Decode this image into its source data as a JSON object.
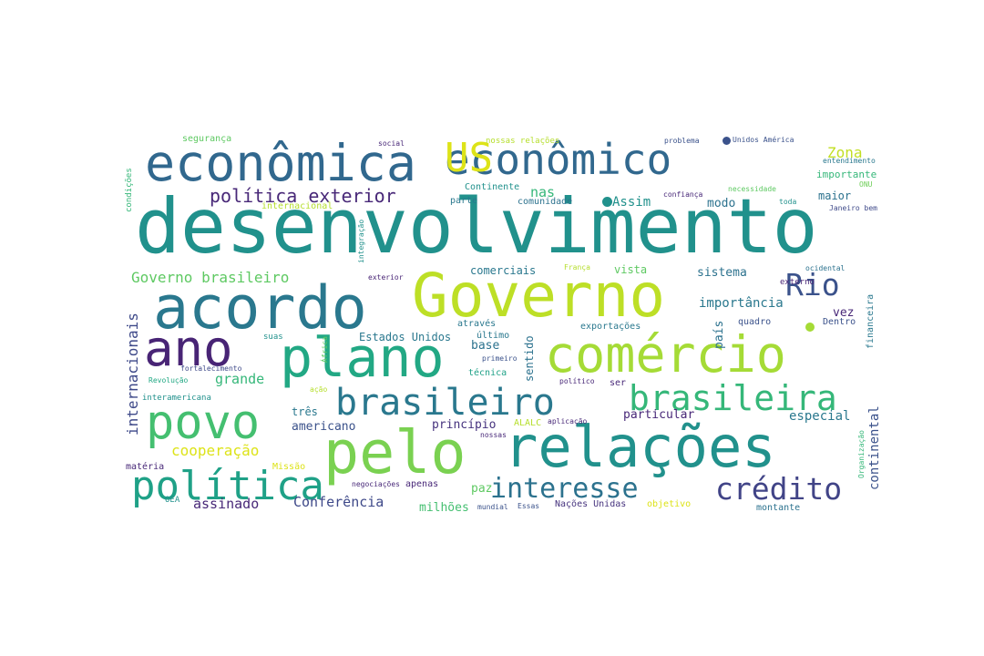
{
  "words": [
    {
      "text": "desenvolvimento",
      "color": "#21918c"
    },
    {
      "text": "econômica",
      "color": "#31688e"
    },
    {
      "text": "econômico",
      "color": "#31688e"
    },
    {
      "text": "US",
      "color": "#dde318"
    },
    {
      "text": "acordo",
      "color": "#2a788e"
    },
    {
      "text": "Governo",
      "color": "#bddf26"
    },
    {
      "text": "Rio",
      "color": "#3b528b"
    },
    {
      "text": "ano",
      "color": "#482475"
    },
    {
      "text": "plano",
      "color": "#22a884"
    },
    {
      "text": "comércio",
      "color": "#a5db36"
    },
    {
      "text": "brasileiro",
      "color": "#2a788e"
    },
    {
      "text": "brasileira",
      "color": "#35b779"
    },
    {
      "text": "povo",
      "color": "#44bf70"
    },
    {
      "text": "pelo",
      "color": "#7ad151"
    },
    {
      "text": "relações",
      "color": "#21918c"
    },
    {
      "text": "política",
      "color": "#1fa187"
    },
    {
      "text": "interesse",
      "color": "#2c728e"
    },
    {
      "text": "crédito",
      "color": "#414487"
    },
    {
      "text": "política exterior",
      "color": "#482878"
    },
    {
      "text": "Governo brasileiro",
      "color": "#5ec962"
    },
    {
      "text": "nas",
      "color": "#35b779"
    },
    {
      "text": "Assim",
      "color": "#21918c"
    },
    {
      "text": "Zona",
      "color": "#c2df23"
    },
    {
      "text": "importante",
      "color": "#35b779"
    },
    {
      "text": "maior",
      "color": "#2c728e"
    },
    {
      "text": "modo",
      "color": "#2c728e"
    },
    {
      "text": "comerciais",
      "color": "#2a788e"
    },
    {
      "text": "vista",
      "color": "#5ec962"
    },
    {
      "text": "sistema",
      "color": "#2c728e"
    },
    {
      "text": "externo",
      "color": "#482475"
    },
    {
      "text": "importância",
      "color": "#2a788e"
    },
    {
      "text": "vez",
      "color": "#482878"
    },
    {
      "text": "internacionais",
      "color": "#3e4989"
    },
    {
      "text": "Estados Unidos",
      "color": "#2a788e"
    },
    {
      "text": "base",
      "color": "#2c728e"
    },
    {
      "text": "sentido",
      "color": "#2c728e"
    },
    {
      "text": "país",
      "color": "#2c728e"
    },
    {
      "text": "quadro",
      "color": "#3b528b"
    },
    {
      "text": "Dentro",
      "color": "#3b528b"
    },
    {
      "text": "financeira",
      "color": "#2a788e"
    },
    {
      "text": "continental",
      "color": "#3b528b"
    },
    {
      "text": "especial",
      "color": "#2a788e"
    },
    {
      "text": "particular",
      "color": "#482878"
    },
    {
      "text": "grande",
      "color": "#35b779"
    },
    {
      "text": "três",
      "color": "#2a788e"
    },
    {
      "text": "americano",
      "color": "#3b528b"
    },
    {
      "text": "princípio",
      "color": "#46337e"
    },
    {
      "text": "cooperação",
      "color": "#dde318"
    },
    {
      "text": "assinado",
      "color": "#482878"
    },
    {
      "text": "Conferência",
      "color": "#3e4989"
    },
    {
      "text": "paz",
      "color": "#5ec962"
    },
    {
      "text": "milhões",
      "color": "#44bf70"
    },
    {
      "text": "segurança",
      "color": "#5ec962"
    },
    {
      "text": "social",
      "color": "#482878"
    },
    {
      "text": "nossas relações",
      "color": "#b5de2b"
    },
    {
      "text": "problema",
      "color": "#3b528b"
    },
    {
      "text": "Unidos América",
      "color": "#3b528b"
    },
    {
      "text": "entendimento",
      "color": "#2a788e"
    },
    {
      "text": "condições",
      "color": "#35b779"
    },
    {
      "text": "internacional",
      "color": "#b5de2b"
    },
    {
      "text": "Continente",
      "color": "#21918c"
    },
    {
      "text": "parte",
      "color": "#2a788e"
    },
    {
      "text": "comunidade",
      "color": "#2c728e"
    },
    {
      "text": "confiança",
      "color": "#482878"
    },
    {
      "text": "necessidade",
      "color": "#5ec962"
    },
    {
      "text": "toda",
      "color": "#21918c"
    },
    {
      "text": "ONU",
      "color": "#6ece58"
    },
    {
      "text": "Janeiro bem",
      "color": "#3e4989"
    },
    {
      "text": "integração",
      "color": "#21918c"
    },
    {
      "text": "exterior",
      "color": "#482475"
    },
    {
      "text": "França",
      "color": "#b5de2b"
    },
    {
      "text": "ocidental",
      "color": "#2c728e"
    },
    {
      "text": "através",
      "color": "#2a788e"
    },
    {
      "text": "último",
      "color": "#2a788e"
    },
    {
      "text": "exportações",
      "color": "#2a788e"
    },
    {
      "text": "suas",
      "color": "#21918c"
    },
    {
      "text": "primeiro",
      "color": "#3b528b"
    },
    {
      "text": "África",
      "color": "#5ec962"
    },
    {
      "text": "fortalecimento",
      "color": "#3e4989"
    },
    {
      "text": "Revolução",
      "color": "#22a884"
    },
    {
      "text": "técnica",
      "color": "#1fa187"
    },
    {
      "text": "político",
      "color": "#482878"
    },
    {
      "text": "ser",
      "color": "#482878"
    },
    {
      "text": "interamericana",
      "color": "#21918c"
    },
    {
      "text": "ação",
      "color": "#b5de2b"
    },
    {
      "text": "ALALC",
      "color": "#b5de2b"
    },
    {
      "text": "aplicação",
      "color": "#482878"
    },
    {
      "text": "nossas",
      "color": "#482878"
    },
    {
      "text": "Organização",
      "color": "#35b779"
    },
    {
      "text": "matéria",
      "color": "#482878"
    },
    {
      "text": "Missão",
      "color": "#dde318"
    },
    {
      "text": "OEA",
      "color": "#21918c"
    },
    {
      "text": "negociações",
      "color": "#482878"
    },
    {
      "text": "apenas",
      "color": "#482878"
    },
    {
      "text": "mundial",
      "color": "#3b528b"
    },
    {
      "text": "Essas",
      "color": "#3b528b"
    },
    {
      "text": "Nações Unidas",
      "color": "#46337e"
    },
    {
      "text": "objetivo",
      "color": "#dde318"
    },
    {
      "text": "montante",
      "color": "#2c728e"
    }
  ],
  "dots": [
    {
      "color": "#21918c"
    },
    {
      "color": "#3b528b"
    },
    {
      "color": "#a5db36"
    }
  ]
}
